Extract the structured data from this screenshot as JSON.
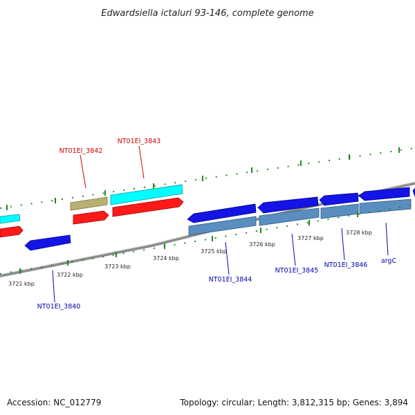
{
  "title": "Edwardsiella ictaluri 93-146, complete genome",
  "footer": {
    "accession": "Accession: NC_012779",
    "topology": "Topology: circular; Length: 3,812,315 bp; Genes: 3,894"
  },
  "colors": {
    "background": "#ffffff",
    "backbone": "#8c8c8c",
    "tick": "#1a8a1a",
    "cds_forward": "#ff1a1a",
    "cds_forward_alt": "#00ffff",
    "cds_reverse": "#1414e6",
    "cds_reverse_alt": "#5a8ec0",
    "trna_rrna": "#b8b070",
    "label_forward": "#cc0000",
    "label_reverse": "#0000aa"
  },
  "tick_labels": [
    {
      "id": "3721",
      "text": "3721 kbp"
    },
    {
      "id": "3722",
      "text": "3722 kbp"
    },
    {
      "id": "3723",
      "text": "3723 kbp"
    },
    {
      "id": "3724",
      "text": "3724 kbp"
    },
    {
      "id": "3725",
      "text": "3725 kbp"
    },
    {
      "id": "3726",
      "text": "3726 kbp"
    },
    {
      "id": "3727",
      "text": "3727 kbp"
    },
    {
      "id": "3728",
      "text": "3728 kbp"
    }
  ],
  "gene_labels": [
    {
      "id": "NT01EI_3842",
      "text": "NT01EI_3842",
      "strand": "forward"
    },
    {
      "id": "NT01EI_3843",
      "text": "NT01EI_3843",
      "strand": "forward"
    },
    {
      "id": "NT01EI_3840",
      "text": "NT01EI_3840",
      "strand": "reverse"
    },
    {
      "id": "NT01EI_3844",
      "text": "NT01EI_3844",
      "strand": "reverse"
    },
    {
      "id": "NT01EI_3845",
      "text": "NT01EI_3845",
      "strand": "reverse"
    },
    {
      "id": "NT01EI_3846",
      "text": "NT01EI_3846",
      "strand": "reverse"
    },
    {
      "id": "argC",
      "text": "argC",
      "strand": "reverse"
    }
  ]
}
